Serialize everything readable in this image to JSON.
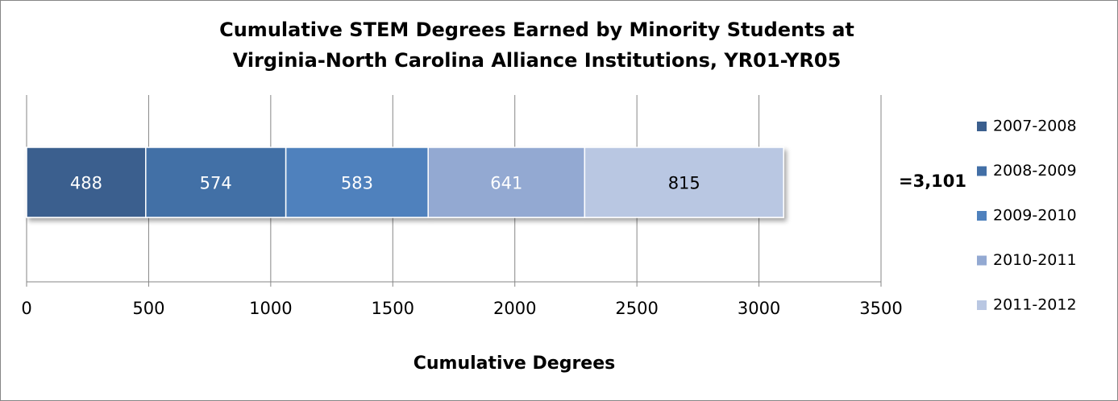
{
  "chart_data": {
    "type": "stacked-bar-horizontal",
    "title": [
      "Cumulative STEM Degrees Earned by Minority Students at",
      "Virginia-North Carolina Alliance Institutions, YR01-YR05"
    ],
    "categories": [
      null
    ],
    "series": [
      {
        "name": "2007-2008",
        "color": "#3b5f8e",
        "values": [
          488
        ]
      },
      {
        "name": "2008-2009",
        "color": "#426fa6",
        "values": [
          574
        ]
      },
      {
        "name": "2009-2010",
        "color": "#4f81bd",
        "values": [
          583
        ]
      },
      {
        "name": "2010-2011",
        "color": "#93a9d2",
        "values": [
          641
        ]
      },
      {
        "name": "2011-2012",
        "color": "#b9c7e2",
        "values": [
          815
        ]
      }
    ],
    "annotation": "=3,101",
    "x_label": "Cumulative Degrees",
    "xlim": [
      0,
      3500
    ],
    "xticks": [
      0,
      500,
      1000,
      1500,
      2000,
      2500,
      3000,
      3500
    ],
    "grid": true,
    "legend": "right"
  }
}
